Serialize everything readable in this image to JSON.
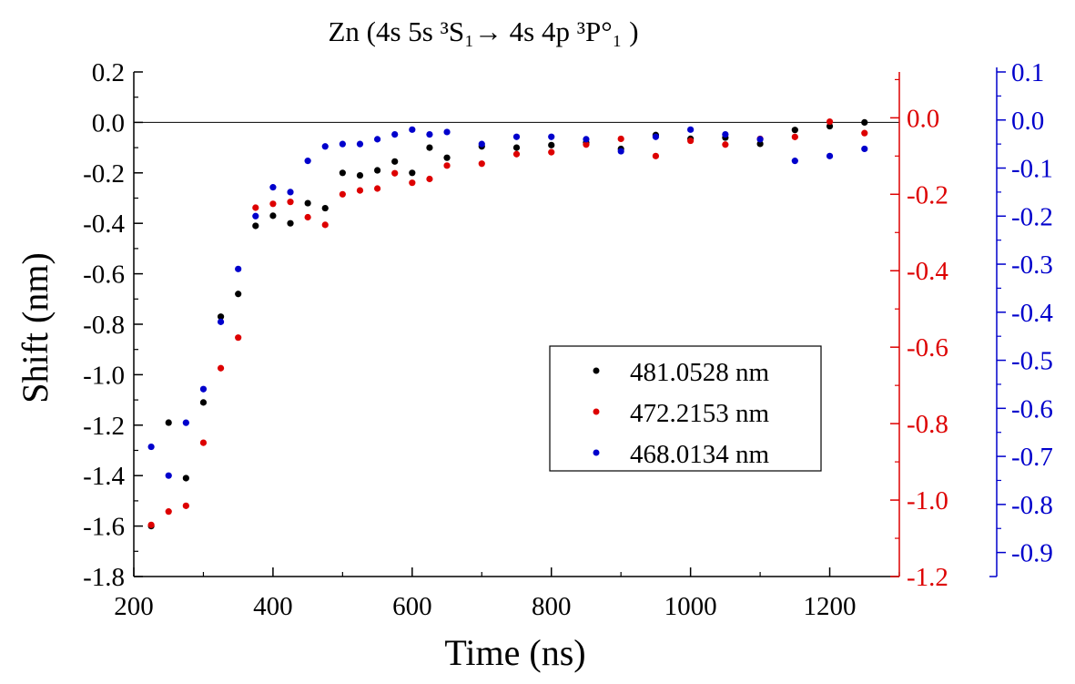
{
  "chart_data": {
    "type": "scatter",
    "title": "Zn (4s 5s ³S₁→ 4s 4p ³P°₁ )",
    "xlabel": "Time (ns)",
    "ylabel": "Shift (nm)",
    "xlim": [
      200,
      1300
    ],
    "xticks": [
      200,
      400,
      600,
      800,
      1000,
      1200
    ],
    "axes": {
      "left": {
        "ylim": [
          -1.8,
          0.2
        ],
        "ticks": [
          -1.8,
          -1.6,
          -1.4,
          -1.2,
          -1.0,
          -0.8,
          -0.6,
          -0.4,
          -0.2,
          0.0,
          0.2
        ],
        "color": "#000000"
      },
      "right_red": {
        "ylim": [
          -1.2,
          0.12
        ],
        "ticks": [
          -1.2,
          -1.0,
          -0.8,
          -0.6,
          -0.4,
          -0.2,
          0.0
        ],
        "color": "#dd0000"
      },
      "right_blue": {
        "ylim": [
          -0.95,
          0.1
        ],
        "ticks": [
          -0.9,
          -0.8,
          -0.7,
          -0.6,
          -0.5,
          -0.4,
          -0.3,
          -0.2,
          -0.1,
          0.0,
          0.1
        ],
        "color": "#0000cc"
      }
    },
    "zero_line": true,
    "grid": false,
    "legend_position": "bottom-right",
    "series": [
      {
        "name": "481.0528 nm",
        "color": "#000000",
        "axis": "left",
        "points": [
          [
            225,
            -1.6
          ],
          [
            250,
            -1.19
          ],
          [
            275,
            -1.41
          ],
          [
            300,
            -1.11
          ],
          [
            325,
            -0.77
          ],
          [
            350,
            -0.68
          ],
          [
            375,
            -0.41
          ],
          [
            400,
            -0.37
          ],
          [
            425,
            -0.4
          ],
          [
            450,
            -0.32
          ],
          [
            475,
            -0.34
          ],
          [
            500,
            -0.2
          ],
          [
            525,
            -0.21
          ],
          [
            550,
            -0.19
          ],
          [
            575,
            -0.155
          ],
          [
            600,
            -0.2
          ],
          [
            625,
            -0.1
          ],
          [
            650,
            -0.14
          ],
          [
            700,
            -0.095
          ],
          [
            750,
            -0.1
          ],
          [
            800,
            -0.09
          ],
          [
            850,
            -0.08
          ],
          [
            900,
            -0.105
          ],
          [
            950,
            -0.05
          ],
          [
            1000,
            -0.065
          ],
          [
            1050,
            -0.06
          ],
          [
            1100,
            -0.085
          ],
          [
            1150,
            -0.03
          ],
          [
            1200,
            -0.015
          ],
          [
            1250,
            0.0
          ]
        ]
      },
      {
        "name": "472.2153 nm",
        "color": "#dd0000",
        "axis": "right_red",
        "points": [
          [
            225,
            -1.065
          ],
          [
            250,
            -1.03
          ],
          [
            275,
            -1.015
          ],
          [
            300,
            -0.85
          ],
          [
            325,
            -0.655
          ],
          [
            350,
            -0.575
          ],
          [
            375,
            -0.235
          ],
          [
            400,
            -0.225
          ],
          [
            425,
            -0.22
          ],
          [
            450,
            -0.26
          ],
          [
            475,
            -0.28
          ],
          [
            500,
            -0.2
          ],
          [
            525,
            -0.19
          ],
          [
            550,
            -0.185
          ],
          [
            575,
            -0.145
          ],
          [
            600,
            -0.17
          ],
          [
            625,
            -0.16
          ],
          [
            650,
            -0.125
          ],
          [
            700,
            -0.12
          ],
          [
            750,
            -0.095
          ],
          [
            800,
            -0.09
          ],
          [
            850,
            -0.07
          ],
          [
            900,
            -0.055
          ],
          [
            950,
            -0.1
          ],
          [
            1000,
            -0.06
          ],
          [
            1050,
            -0.07
          ],
          [
            1100,
            -0.055
          ],
          [
            1150,
            -0.05
          ],
          [
            1200,
            -0.01
          ],
          [
            1250,
            -0.04
          ]
        ]
      },
      {
        "name": "468.0134 nm",
        "color": "#0000cc",
        "axis": "right_blue",
        "points": [
          [
            225,
            -0.68
          ],
          [
            250,
            -0.74
          ],
          [
            275,
            -0.63
          ],
          [
            300,
            -0.56
          ],
          [
            325,
            -0.42
          ],
          [
            350,
            -0.31
          ],
          [
            375,
            -0.2
          ],
          [
            400,
            -0.14
          ],
          [
            425,
            -0.15
          ],
          [
            450,
            -0.085
          ],
          [
            475,
            -0.055
          ],
          [
            500,
            -0.05
          ],
          [
            525,
            -0.05
          ],
          [
            550,
            -0.04
          ],
          [
            575,
            -0.03
          ],
          [
            600,
            -0.02
          ],
          [
            625,
            -0.03
          ],
          [
            650,
            -0.025
          ],
          [
            700,
            -0.05
          ],
          [
            750,
            -0.035
          ],
          [
            800,
            -0.035
          ],
          [
            850,
            -0.04
          ],
          [
            900,
            -0.065
          ],
          [
            950,
            -0.035
          ],
          [
            1000,
            -0.02
          ],
          [
            1050,
            -0.03
          ],
          [
            1100,
            -0.04
          ],
          [
            1150,
            -0.085
          ],
          [
            1200,
            -0.075
          ],
          [
            1250,
            -0.06
          ]
        ]
      }
    ]
  }
}
